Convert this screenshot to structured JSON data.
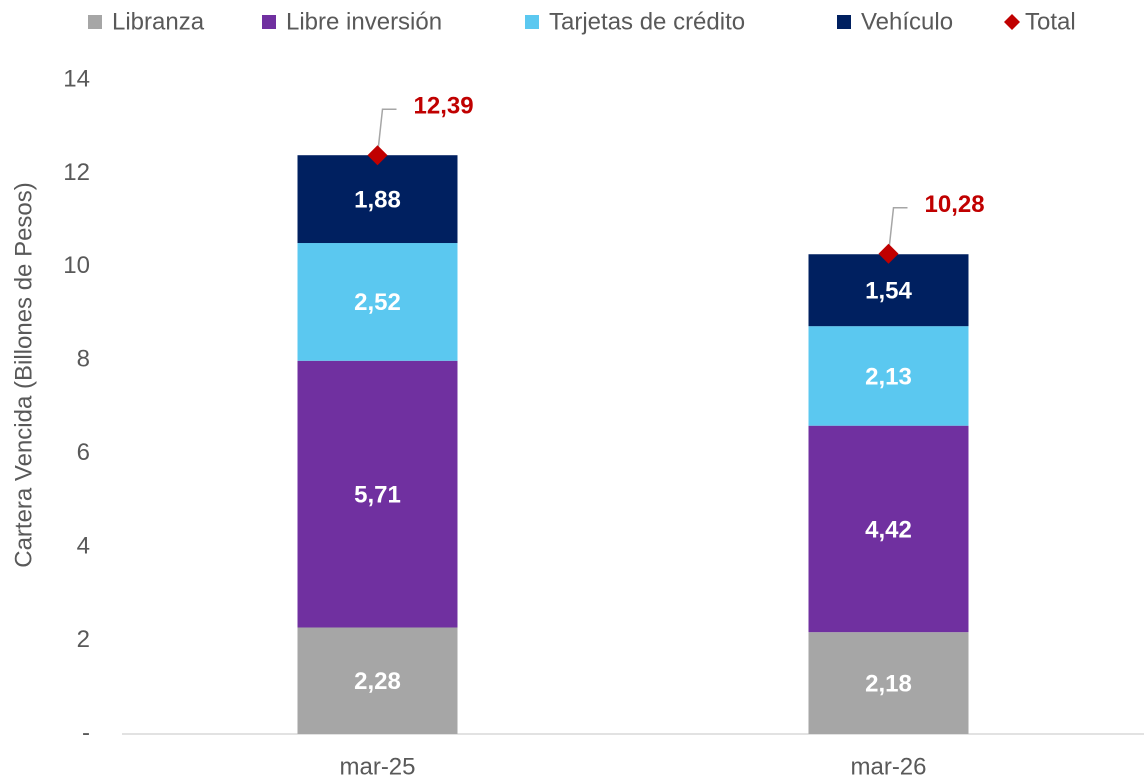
{
  "chart_data": {
    "type": "bar",
    "stacked": true,
    "y_label": "Cartera Vencida (Billones de Pesos)",
    "categories": [
      "mar-25",
      "mar-26"
    ],
    "series": [
      {
        "name": "Libranza",
        "color": "#a6a6a6",
        "values": [
          2.28,
          2.18
        ],
        "value_labels": [
          "2,28",
          "2,18"
        ]
      },
      {
        "name": "Libre inversión",
        "color": "#7030a0",
        "values": [
          5.71,
          4.42
        ],
        "value_labels": [
          "5,71",
          "4,42"
        ]
      },
      {
        "name": "Tarjetas de crédito",
        "color": "#5bc8f0",
        "values": [
          2.52,
          2.13
        ],
        "value_labels": [
          "2,52",
          "2,13"
        ]
      },
      {
        "name": "Vehículo",
        "color": "#002060",
        "values": [
          1.88,
          1.54
        ],
        "value_labels": [
          "1,88",
          "1,54"
        ]
      },
      {
        "name": "Total",
        "color": "#c00000",
        "marker": "diamond",
        "values": [
          12.39,
          10.28
        ],
        "value_labels": [
          "12,39",
          "10,28"
        ]
      }
    ],
    "ylim": [
      0,
      14
    ],
    "yticks": [
      {
        "value": 0,
        "label": "-"
      },
      2,
      4,
      6,
      8,
      10,
      12,
      14
    ],
    "legend": "top"
  }
}
